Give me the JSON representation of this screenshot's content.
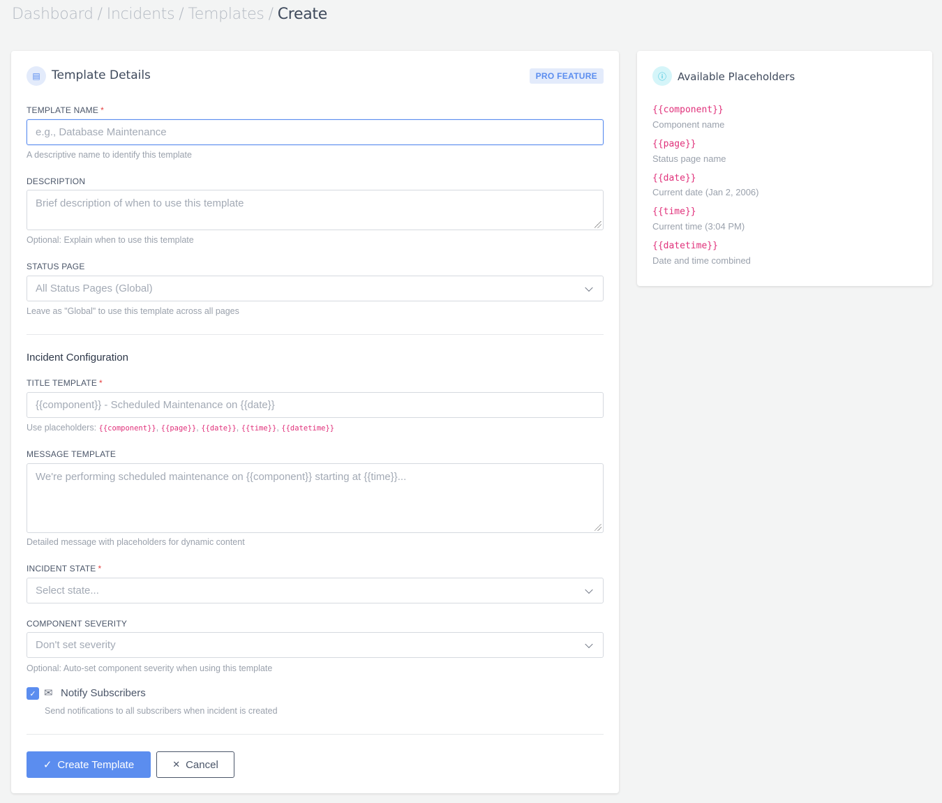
{
  "breadcrumb": [
    "Dashboard",
    "Incidents",
    "Templates",
    "Create"
  ],
  "details": {
    "title": "Template Details",
    "badge": "PRO FEATURE",
    "name": {
      "label": "TEMPLATE NAME",
      "placeholder": "e.g., Database Maintenance",
      "help": "A descriptive name to identify this template"
    },
    "description": {
      "label": "DESCRIPTION",
      "placeholder": "Brief description of when to use this template",
      "help": "Optional: Explain when to use this template"
    },
    "status_page": {
      "label": "STATUS PAGE",
      "value": "All Status Pages (Global)",
      "help": "Leave as \"Global\" to use this template across all pages"
    },
    "section": "Incident Configuration",
    "title_template": {
      "label": "TITLE TEMPLATE",
      "placeholder": "{{component}} - Scheduled Maintenance on {{date}}",
      "help_prefix": "Use placeholders: ",
      "codes": [
        "{{component}}",
        "{{page}}",
        "{{date}}",
        "{{time}}",
        "{{datetime}}"
      ]
    },
    "message_template": {
      "label": "MESSAGE TEMPLATE",
      "placeholder": "We're performing scheduled maintenance on {{component}} starting at {{time}}...",
      "help": "Detailed message with placeholders for dynamic content"
    },
    "incident_state": {
      "label": "INCIDENT STATE",
      "value": "Select state..."
    },
    "severity": {
      "label": "COMPONENT SEVERITY",
      "value": "Don't set severity",
      "help": "Optional: Auto-set component severity when using this template"
    },
    "notify": {
      "label": "Notify Subscribers",
      "checked": true,
      "help": "Send notifications to all subscribers when incident is created"
    },
    "create": "Create Template",
    "cancel": "Cancel"
  },
  "placeholders": {
    "title": "Available Placeholders",
    "items": [
      {
        "name": "{{component}}",
        "desc": "Component name"
      },
      {
        "name": "{{page}}",
        "desc": "Status page name"
      },
      {
        "name": "{{date}}",
        "desc": "Current date (Jan 2, 2006)"
      },
      {
        "name": "{{time}}",
        "desc": "Current time (3:04 PM)"
      },
      {
        "name": "{{datetime}}",
        "desc": "Date and time combined"
      }
    ]
  },
  "colors": {
    "accent": "#5b8def",
    "code": "#e0307a"
  }
}
